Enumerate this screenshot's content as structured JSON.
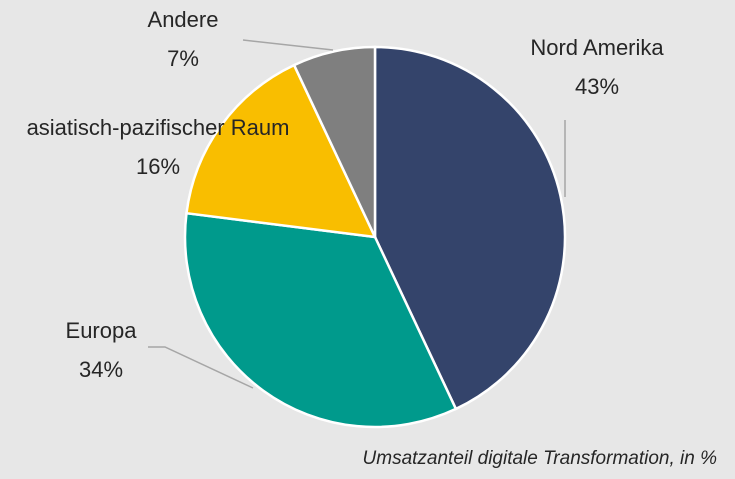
{
  "chart_data": {
    "type": "pie",
    "caption": "Umsatzanteil digitale Transformation, in %",
    "categories": [
      "Nord Amerika",
      "Europa",
      "asiatisch-pazifischer Raum",
      "Andere"
    ],
    "values": [
      43,
      34,
      16,
      7
    ],
    "value_labels": [
      "43%",
      "34%",
      "16%",
      "7%"
    ],
    "colors": [
      "#34446b",
      "#009a8c",
      "#f9be00",
      "#7f7f7f"
    ]
  }
}
